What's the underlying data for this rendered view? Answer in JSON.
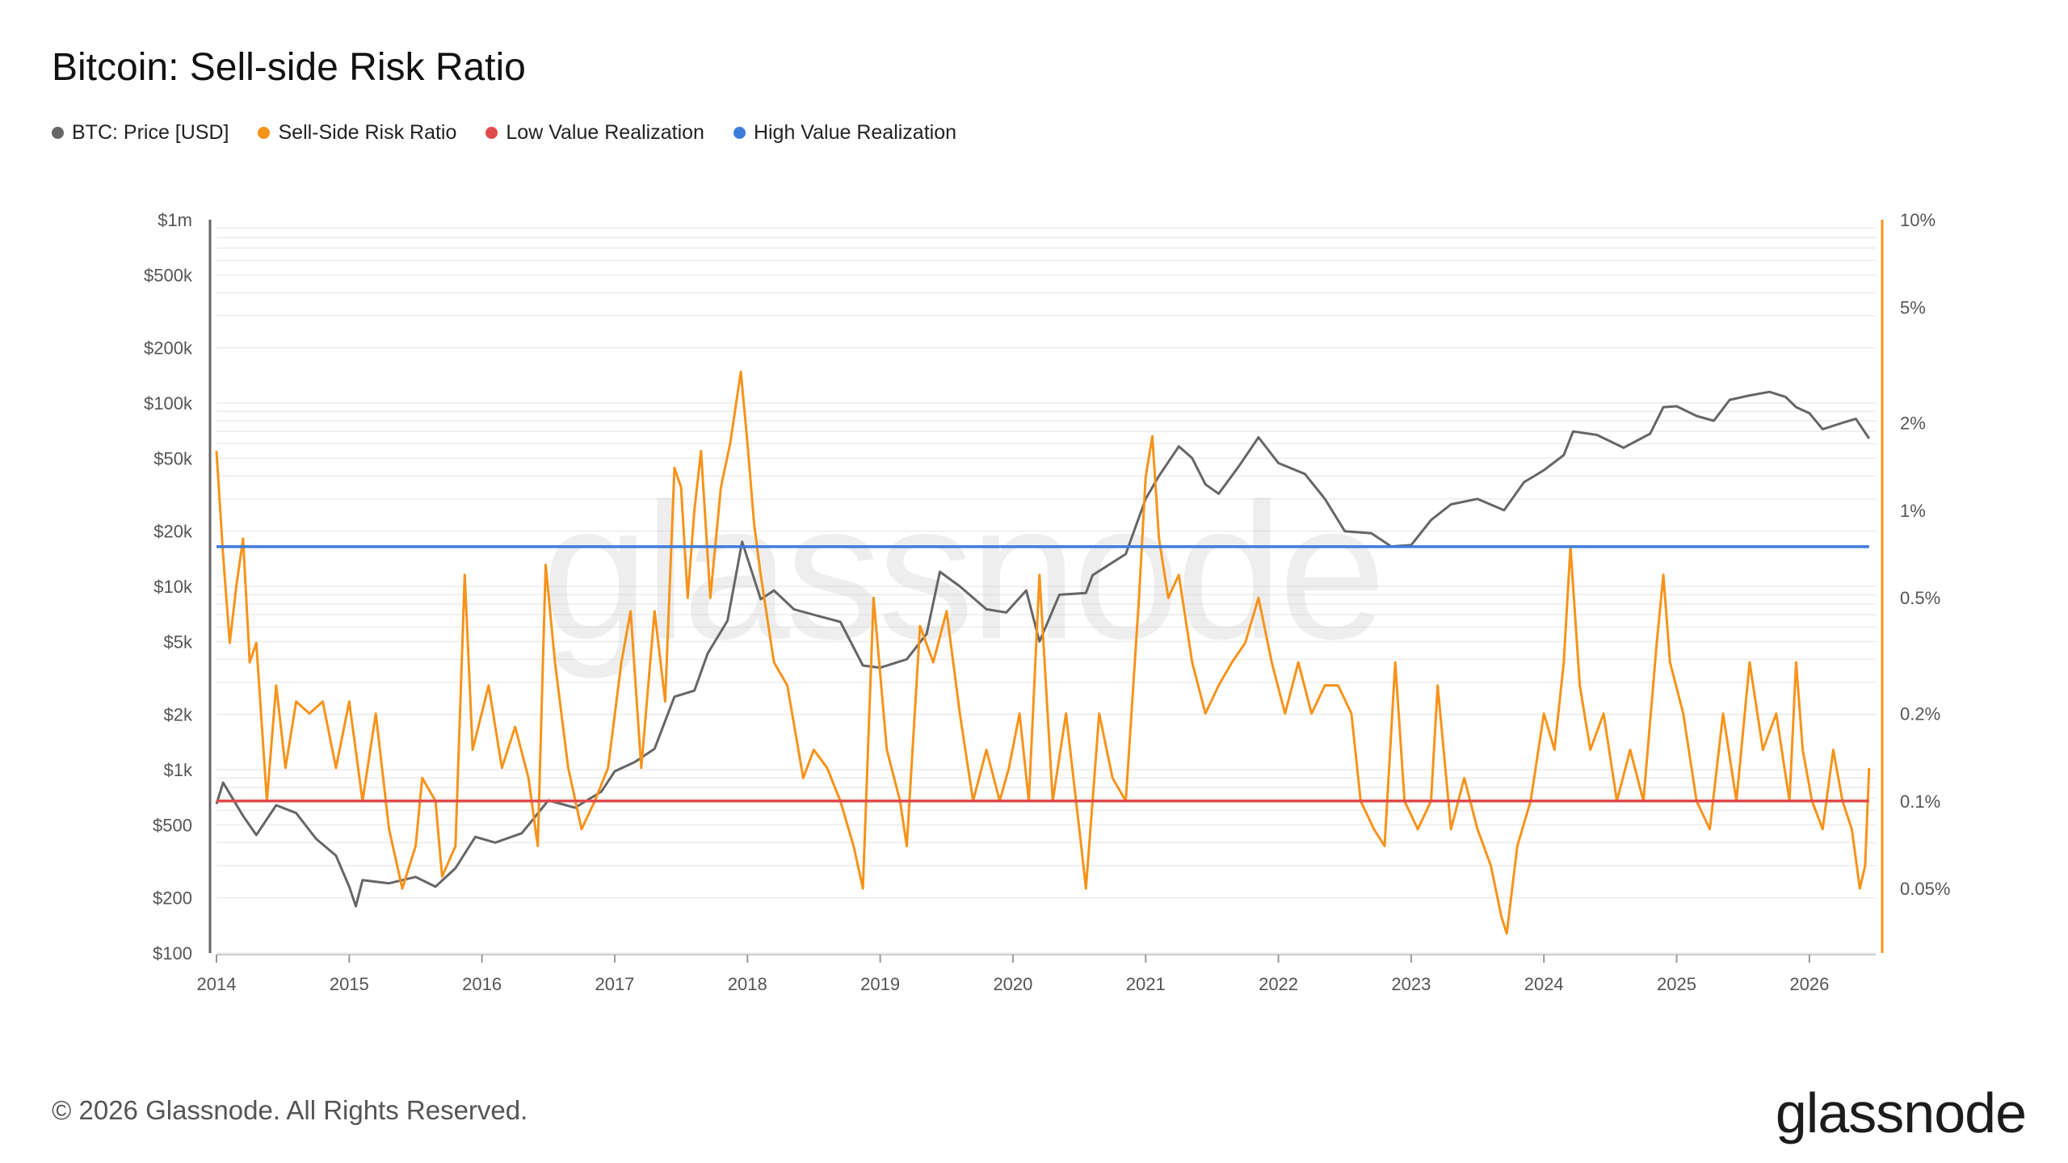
{
  "title": "Bitcoin: Sell-side Risk Ratio",
  "footer": "© 2026 Glassnode. All Rights Reserved.",
  "brand": "glassnode",
  "watermark": "glassnode",
  "legend": [
    {
      "label": "BTC: Price [USD]",
      "color": "#666666"
    },
    {
      "label": "Sell-Side Risk Ratio",
      "color": "#f7931a"
    },
    {
      "label": "Low Value Realization",
      "color": "#e14a4a"
    },
    {
      "label": "High Value Realization",
      "color": "#3d7ddc"
    }
  ],
  "chart_data": {
    "type": "line",
    "x_ticks": [
      "2014",
      "2015",
      "2016",
      "2017",
      "2018",
      "2019",
      "2020",
      "2021",
      "2022",
      "2023",
      "2024",
      "2025",
      "2026"
    ],
    "x_range": [
      2014.0,
      2026.5
    ],
    "y_left": {
      "scale": "log",
      "range": [
        100,
        1000000
      ],
      "ticks": [
        {
          "v": 100,
          "label": "$100"
        },
        {
          "v": 200,
          "label": "$200"
        },
        {
          "v": 500,
          "label": "$500"
        },
        {
          "v": 1000,
          "label": "$1k"
        },
        {
          "v": 2000,
          "label": "$2k"
        },
        {
          "v": 5000,
          "label": "$5k"
        },
        {
          "v": 10000,
          "label": "$10k"
        },
        {
          "v": 20000,
          "label": "$20k"
        },
        {
          "v": 50000,
          "label": "$50k"
        },
        {
          "v": 100000,
          "label": "$100k"
        },
        {
          "v": 200000,
          "label": "$200k"
        },
        {
          "v": 500000,
          "label": "$500k"
        },
        {
          "v": 1000000,
          "label": "$1m"
        }
      ]
    },
    "y_right": {
      "scale": "log",
      "range": [
        0.03,
        10
      ],
      "ticks": [
        {
          "v": 0.05,
          "label": "0.05%"
        },
        {
          "v": 0.1,
          "label": "0.1%"
        },
        {
          "v": 0.2,
          "label": "0.2%"
        },
        {
          "v": 0.5,
          "label": "0.5%"
        },
        {
          "v": 1,
          "label": "1%"
        },
        {
          "v": 2,
          "label": "2%"
        },
        {
          "v": 5,
          "label": "5%"
        },
        {
          "v": 10,
          "label": "10%"
        }
      ]
    },
    "series": [
      {
        "name": "BTC: Price [USD]",
        "axis": "left",
        "color": "#666666",
        "points": [
          [
            2014.0,
            650
          ],
          [
            2014.05,
            850
          ],
          [
            2014.12,
            700
          ],
          [
            2014.2,
            560
          ],
          [
            2014.3,
            440
          ],
          [
            2014.45,
            640
          ],
          [
            2014.6,
            580
          ],
          [
            2014.75,
            420
          ],
          [
            2014.9,
            340
          ],
          [
            2015.0,
            230
          ],
          [
            2015.05,
            180
          ],
          [
            2015.1,
            250
          ],
          [
            2015.3,
            240
          ],
          [
            2015.5,
            260
          ],
          [
            2015.65,
            230
          ],
          [
            2015.8,
            290
          ],
          [
            2015.95,
            430
          ],
          [
            2016.1,
            400
          ],
          [
            2016.3,
            450
          ],
          [
            2016.5,
            680
          ],
          [
            2016.7,
            620
          ],
          [
            2016.9,
            760
          ],
          [
            2017.0,
            980
          ],
          [
            2017.15,
            1100
          ],
          [
            2017.3,
            1300
          ],
          [
            2017.45,
            2500
          ],
          [
            2017.6,
            2700
          ],
          [
            2017.7,
            4300
          ],
          [
            2017.85,
            6500
          ],
          [
            2017.96,
            17500
          ],
          [
            2018.05,
            11000
          ],
          [
            2018.1,
            8500
          ],
          [
            2018.2,
            9500
          ],
          [
            2018.35,
            7500
          ],
          [
            2018.5,
            7000
          ],
          [
            2018.7,
            6400
          ],
          [
            2018.87,
            3700
          ],
          [
            2019.0,
            3600
          ],
          [
            2019.2,
            4000
          ],
          [
            2019.35,
            5500
          ],
          [
            2019.45,
            12000
          ],
          [
            2019.6,
            10000
          ],
          [
            2019.8,
            7500
          ],
          [
            2019.95,
            7200
          ],
          [
            2020.1,
            9500
          ],
          [
            2020.2,
            5000
          ],
          [
            2020.35,
            9000
          ],
          [
            2020.55,
            9200
          ],
          [
            2020.6,
            11500
          ],
          [
            2020.85,
            15000
          ],
          [
            2021.0,
            30000
          ],
          [
            2021.1,
            40000
          ],
          [
            2021.25,
            58000
          ],
          [
            2021.35,
            50000
          ],
          [
            2021.45,
            36000
          ],
          [
            2021.55,
            32000
          ],
          [
            2021.7,
            45000
          ],
          [
            2021.85,
            65000
          ],
          [
            2022.0,
            47000
          ],
          [
            2022.2,
            41000
          ],
          [
            2022.35,
            30000
          ],
          [
            2022.5,
            20000
          ],
          [
            2022.7,
            19500
          ],
          [
            2022.85,
            16500
          ],
          [
            2023.0,
            16800
          ],
          [
            2023.15,
            23000
          ],
          [
            2023.3,
            28000
          ],
          [
            2023.5,
            30000
          ],
          [
            2023.7,
            26000
          ],
          [
            2023.85,
            37000
          ],
          [
            2024.0,
            43000
          ],
          [
            2024.15,
            52000
          ],
          [
            2024.22,
            70000
          ],
          [
            2024.4,
            67000
          ],
          [
            2024.6,
            57000
          ],
          [
            2024.8,
            68000
          ],
          [
            2024.9,
            95000
          ],
          [
            2025.0,
            96000
          ],
          [
            2025.15,
            85000
          ],
          [
            2025.28,
            80000
          ],
          [
            2025.4,
            104000
          ],
          [
            2025.55,
            110000
          ],
          [
            2025.7,
            115000
          ],
          [
            2025.82,
            108000
          ],
          [
            2025.9,
            95000
          ],
          [
            2026.0,
            88000
          ],
          [
            2026.1,
            72000
          ],
          [
            2026.25,
            78000
          ],
          [
            2026.35,
            82000
          ],
          [
            2026.45,
            64000
          ]
        ]
      },
      {
        "name": "Sell-Side Risk Ratio",
        "axis": "right",
        "color": "#f7931a",
        "points": [
          [
            2014.0,
            1.6
          ],
          [
            2014.05,
            0.7
          ],
          [
            2014.1,
            0.35
          ],
          [
            2014.15,
            0.55
          ],
          [
            2014.2,
            0.8
          ],
          [
            2014.25,
            0.3
          ],
          [
            2014.3,
            0.35
          ],
          [
            2014.38,
            0.1
          ],
          [
            2014.45,
            0.25
          ],
          [
            2014.52,
            0.13
          ],
          [
            2014.6,
            0.22
          ],
          [
            2014.7,
            0.2
          ],
          [
            2014.8,
            0.22
          ],
          [
            2014.9,
            0.13
          ],
          [
            2015.0,
            0.22
          ],
          [
            2015.1,
            0.1
          ],
          [
            2015.2,
            0.2
          ],
          [
            2015.3,
            0.08
          ],
          [
            2015.4,
            0.05
          ],
          [
            2015.5,
            0.07
          ],
          [
            2015.55,
            0.12
          ],
          [
            2015.65,
            0.1
          ],
          [
            2015.7,
            0.055
          ],
          [
            2015.8,
            0.07
          ],
          [
            2015.87,
            0.6
          ],
          [
            2015.93,
            0.15
          ],
          [
            2016.05,
            0.25
          ],
          [
            2016.15,
            0.13
          ],
          [
            2016.25,
            0.18
          ],
          [
            2016.35,
            0.12
          ],
          [
            2016.42,
            0.07
          ],
          [
            2016.48,
            0.65
          ],
          [
            2016.55,
            0.3
          ],
          [
            2016.65,
            0.13
          ],
          [
            2016.75,
            0.08
          ],
          [
            2016.85,
            0.1
          ],
          [
            2016.95,
            0.13
          ],
          [
            2017.05,
            0.3
          ],
          [
            2017.12,
            0.45
          ],
          [
            2017.2,
            0.13
          ],
          [
            2017.3,
            0.45
          ],
          [
            2017.38,
            0.22
          ],
          [
            2017.45,
            1.4
          ],
          [
            2017.5,
            1.2
          ],
          [
            2017.55,
            0.5
          ],
          [
            2017.6,
            1.0
          ],
          [
            2017.65,
            1.6
          ],
          [
            2017.72,
            0.5
          ],
          [
            2017.8,
            1.2
          ],
          [
            2017.87,
            1.7
          ],
          [
            2017.95,
            3.0
          ],
          [
            2018.0,
            1.7
          ],
          [
            2018.05,
            0.9
          ],
          [
            2018.1,
            0.6
          ],
          [
            2018.2,
            0.3
          ],
          [
            2018.3,
            0.25
          ],
          [
            2018.42,
            0.12
          ],
          [
            2018.5,
            0.15
          ],
          [
            2018.6,
            0.13
          ],
          [
            2018.7,
            0.1
          ],
          [
            2018.8,
            0.07
          ],
          [
            2018.87,
            0.05
          ],
          [
            2018.95,
            0.5
          ],
          [
            2019.05,
            0.15
          ],
          [
            2019.15,
            0.1
          ],
          [
            2019.2,
            0.07
          ],
          [
            2019.3,
            0.4
          ],
          [
            2019.4,
            0.3
          ],
          [
            2019.5,
            0.45
          ],
          [
            2019.6,
            0.2
          ],
          [
            2019.7,
            0.1
          ],
          [
            2019.8,
            0.15
          ],
          [
            2019.9,
            0.1
          ],
          [
            2019.97,
            0.13
          ],
          [
            2020.05,
            0.2
          ],
          [
            2020.12,
            0.1
          ],
          [
            2020.2,
            0.6
          ],
          [
            2020.3,
            0.1
          ],
          [
            2020.4,
            0.2
          ],
          [
            2020.5,
            0.08
          ],
          [
            2020.55,
            0.05
          ],
          [
            2020.65,
            0.2
          ],
          [
            2020.75,
            0.12
          ],
          [
            2020.85,
            0.1
          ],
          [
            2020.95,
            0.5
          ],
          [
            2021.0,
            1.3
          ],
          [
            2021.05,
            1.8
          ],
          [
            2021.1,
            0.8
          ],
          [
            2021.17,
            0.5
          ],
          [
            2021.25,
            0.6
          ],
          [
            2021.35,
            0.3
          ],
          [
            2021.45,
            0.2
          ],
          [
            2021.55,
            0.25
          ],
          [
            2021.65,
            0.3
          ],
          [
            2021.75,
            0.35
          ],
          [
            2021.85,
            0.5
          ],
          [
            2021.95,
            0.3
          ],
          [
            2022.05,
            0.2
          ],
          [
            2022.15,
            0.3
          ],
          [
            2022.25,
            0.2
          ],
          [
            2022.35,
            0.25
          ],
          [
            2022.45,
            0.25
          ],
          [
            2022.55,
            0.2
          ],
          [
            2022.62,
            0.1
          ],
          [
            2022.72,
            0.08
          ],
          [
            2022.8,
            0.07
          ],
          [
            2022.88,
            0.3
          ],
          [
            2022.95,
            0.1
          ],
          [
            2023.05,
            0.08
          ],
          [
            2023.15,
            0.1
          ],
          [
            2023.2,
            0.25
          ],
          [
            2023.3,
            0.08
          ],
          [
            2023.4,
            0.12
          ],
          [
            2023.5,
            0.08
          ],
          [
            2023.6,
            0.06
          ],
          [
            2023.68,
            0.04
          ],
          [
            2023.72,
            0.035
          ],
          [
            2023.8,
            0.07
          ],
          [
            2023.9,
            0.1
          ],
          [
            2024.0,
            0.2
          ],
          [
            2024.08,
            0.15
          ],
          [
            2024.15,
            0.3
          ],
          [
            2024.2,
            0.75
          ],
          [
            2024.27,
            0.25
          ],
          [
            2024.35,
            0.15
          ],
          [
            2024.45,
            0.2
          ],
          [
            2024.55,
            0.1
          ],
          [
            2024.65,
            0.15
          ],
          [
            2024.75,
            0.1
          ],
          [
            2024.85,
            0.35
          ],
          [
            2024.9,
            0.6
          ],
          [
            2024.95,
            0.3
          ],
          [
            2025.05,
            0.2
          ],
          [
            2025.15,
            0.1
          ],
          [
            2025.25,
            0.08
          ],
          [
            2025.35,
            0.2
          ],
          [
            2025.45,
            0.1
          ],
          [
            2025.55,
            0.3
          ],
          [
            2025.65,
            0.15
          ],
          [
            2025.75,
            0.2
          ],
          [
            2025.85,
            0.1
          ],
          [
            2025.9,
            0.3
          ],
          [
            2025.95,
            0.15
          ],
          [
            2026.02,
            0.1
          ],
          [
            2026.1,
            0.08
          ],
          [
            2026.18,
            0.15
          ],
          [
            2026.25,
            0.1
          ],
          [
            2026.32,
            0.08
          ],
          [
            2026.38,
            0.05
          ],
          [
            2026.42,
            0.06
          ],
          [
            2026.45,
            0.13
          ]
        ]
      },
      {
        "name": "Low Value Realization",
        "axis": "right",
        "color": "#e14a4a",
        "points": [
          [
            2014.0,
            0.1
          ],
          [
            2026.45,
            0.1
          ]
        ]
      },
      {
        "name": "High Value Realization",
        "axis": "right",
        "color": "#3d7ddc",
        "points": [
          [
            2014.0,
            0.75
          ],
          [
            2026.45,
            0.75
          ]
        ]
      }
    ]
  }
}
